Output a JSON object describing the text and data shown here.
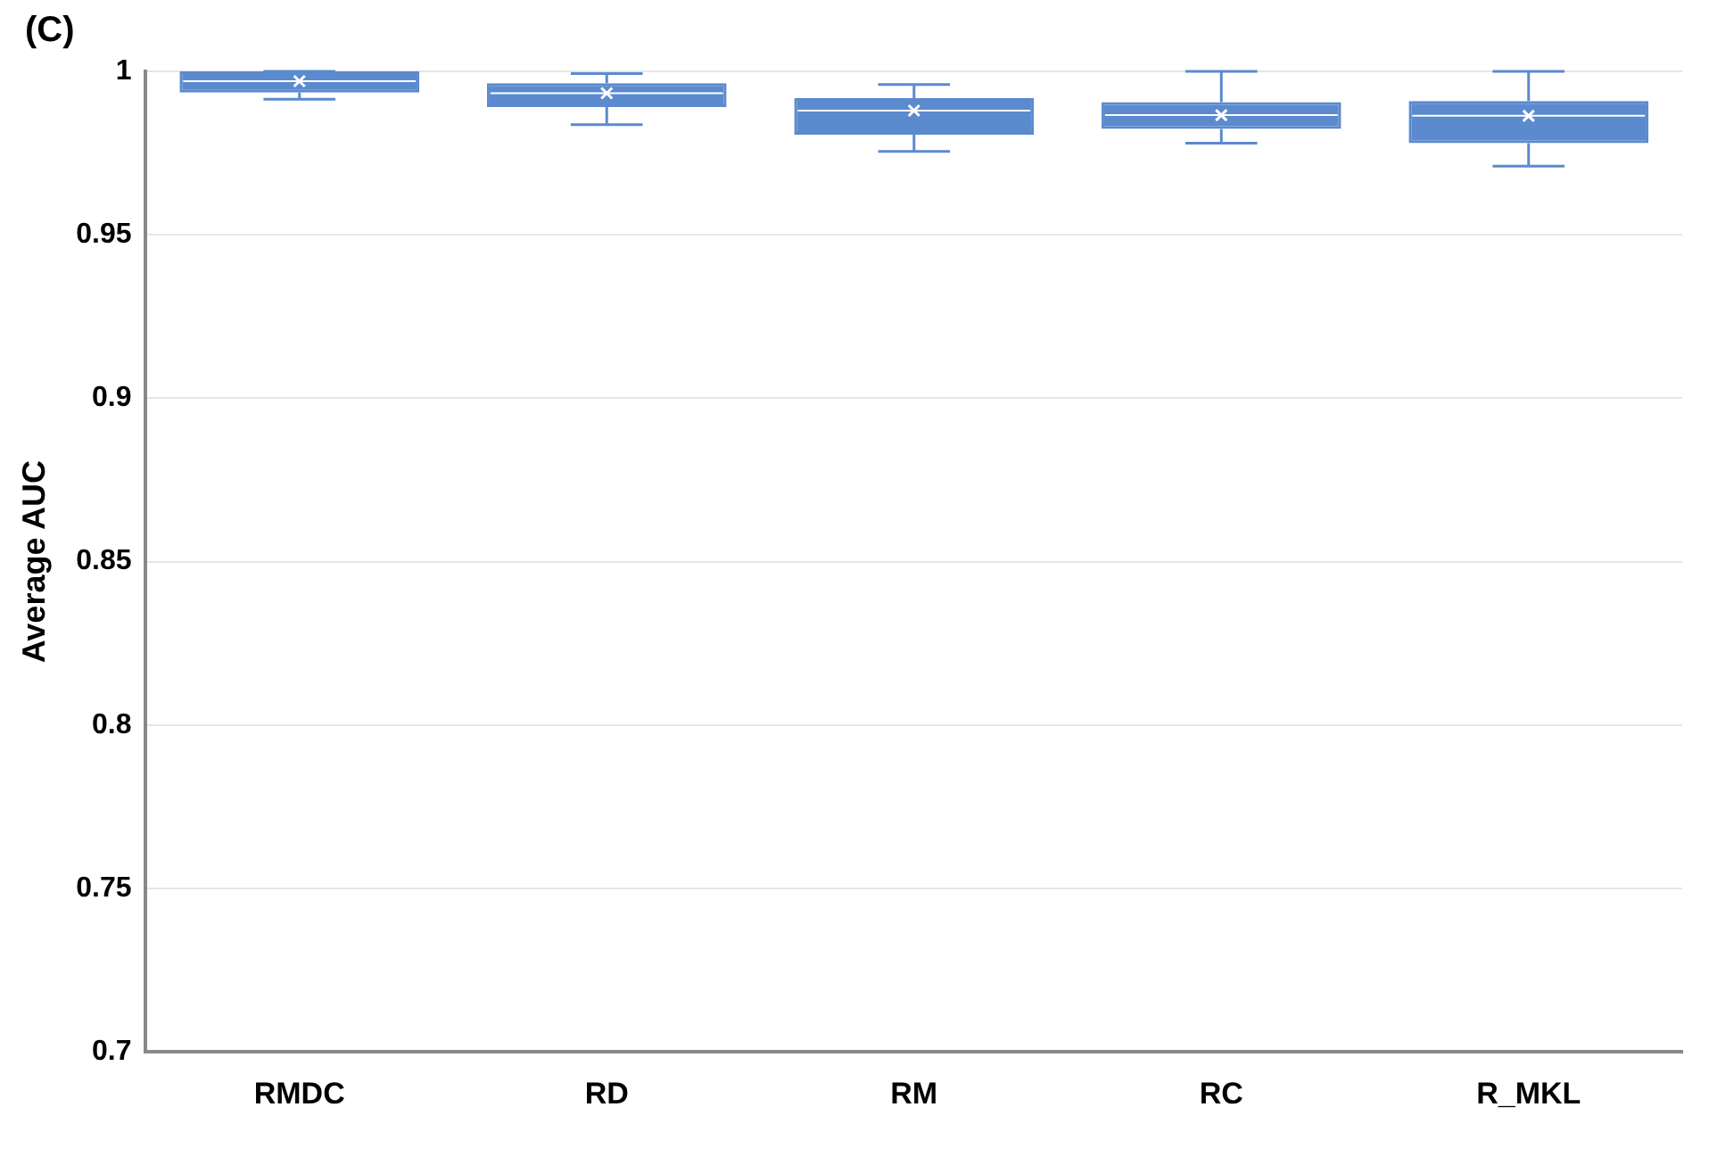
{
  "chart_data": {
    "type": "box",
    "title": "(C)",
    "ylabel": "Average AUC",
    "categories": [
      "RMDC",
      "RD",
      "RM",
      "RC",
      "R_MKL"
    ],
    "color": "#5b8ace",
    "boxes": [
      {
        "low": 0.9915,
        "q1": 0.9935,
        "median": 0.997,
        "q3": 1.0,
        "high": 1.0,
        "mean": 0.997
      },
      {
        "low": 0.9837,
        "q1": 0.9891,
        "median": 0.9933,
        "q3": 0.9964,
        "high": 0.9993,
        "mean": 0.9933
      },
      {
        "low": 0.9755,
        "q1": 0.9806,
        "median": 0.988,
        "q3": 0.9918,
        "high": 0.996,
        "mean": 0.988
      },
      {
        "low": 0.978,
        "q1": 0.9824,
        "median": 0.9866,
        "q3": 0.9906,
        "high": 1.0,
        "mean": 0.9866
      },
      {
        "low": 0.971,
        "q1": 0.978,
        "median": 0.9864,
        "q3": 0.9909,
        "high": 1.0,
        "mean": 0.9864
      }
    ],
    "ylim": [
      0.7,
      1
    ],
    "yticks": [
      0.7,
      0.75,
      0.8,
      0.85,
      0.9,
      0.95,
      1
    ],
    "grid": "y",
    "legend": false
  }
}
